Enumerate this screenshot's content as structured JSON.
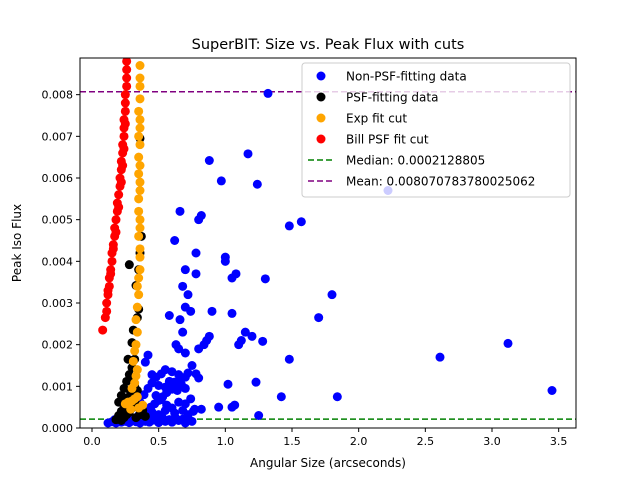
{
  "chart_data": {
    "type": "scatter",
    "title": "SuperBIT: Size vs. Peak Flux with cuts",
    "xlabel": "Angular Size (arcseconds)",
    "ylabel": "Peak Iso Flux",
    "xlim": [
      -0.09,
      3.63
    ],
    "ylim": [
      0,
      0.00888
    ],
    "x_ticks": [
      0.0,
      0.5,
      1.0,
      1.5,
      2.0,
      2.5,
      3.0,
      3.5
    ],
    "x_tick_labels": [
      "0.0",
      "0.5",
      "1.0",
      "1.5",
      "2.0",
      "2.5",
      "3.0",
      "3.5"
    ],
    "y_ticks": [
      0,
      0.001,
      0.002,
      0.003,
      0.004,
      0.005,
      0.006,
      0.007,
      0.008
    ],
    "y_tick_labels": [
      "0.000",
      "0.001",
      "0.002",
      "0.003",
      "0.004",
      "0.005",
      "0.006",
      "0.007",
      "0.008"
    ],
    "grid": false,
    "legend_position": "top-right",
    "series": [
      {
        "name": "Non-PSF-fitting data",
        "color": "#0000ff",
        "points": [
          [
            0.12,
            0.00012
          ],
          [
            0.15,
            0.00015
          ],
          [
            0.18,
            0.00012
          ],
          [
            0.2,
            0.00018
          ],
          [
            0.22,
            0.00014
          ],
          [
            0.25,
            0.00016
          ],
          [
            0.28,
            0.00013
          ],
          [
            0.3,
            0.00018
          ],
          [
            0.33,
            0.00015
          ],
          [
            0.36,
            0.00012
          ],
          [
            0.4,
            0.00016
          ],
          [
            0.43,
            0.00014
          ],
          [
            0.46,
            0.00019
          ],
          [
            0.5,
            0.00013
          ],
          [
            0.55,
            0.00016
          ],
          [
            0.6,
            0.00014
          ],
          [
            0.65,
            0.00018
          ],
          [
            0.7,
            0.00012
          ],
          [
            0.75,
            0.00016
          ],
          [
            0.17,
            0.0002
          ],
          [
            0.23,
            0.00022
          ],
          [
            0.27,
            0.00021
          ],
          [
            0.32,
            0.00023
          ],
          [
            0.38,
            0.0002
          ],
          [
            0.42,
            0.00025
          ],
          [
            0.48,
            0.00022
          ],
          [
            0.53,
            0.00024
          ],
          [
            0.58,
            0.0002
          ],
          [
            0.63,
            0.00023
          ],
          [
            0.68,
            0.00021
          ],
          [
            0.72,
            0.00024
          ],
          [
            0.35,
            0.0003
          ],
          [
            0.38,
            0.00036
          ],
          [
            0.41,
            0.00042
          ],
          [
            0.44,
            0.0005
          ],
          [
            0.47,
            0.00058
          ],
          [
            0.5,
            0.00066
          ],
          [
            0.53,
            0.00075
          ],
          [
            0.56,
            0.00085
          ],
          [
            0.6,
            0.00093
          ],
          [
            0.63,
            0.00102
          ],
          [
            0.66,
            0.00112
          ],
          [
            0.7,
            0.00122
          ],
          [
            0.72,
            0.00132
          ],
          [
            0.36,
            0.00062
          ],
          [
            0.39,
            0.0008
          ],
          [
            0.42,
            0.00095
          ],
          [
            0.45,
            0.00108
          ],
          [
            0.48,
            0.00122
          ],
          [
            0.52,
            0.0013
          ],
          [
            0.55,
            0.0014
          ],
          [
            0.4,
            0.00158
          ],
          [
            0.42,
            0.00175
          ],
          [
            0.45,
            0.00128
          ],
          [
            0.5,
            0.00102
          ],
          [
            0.55,
            0.00098
          ],
          [
            0.58,
            0.00112
          ],
          [
            0.62,
            0.0011
          ],
          [
            0.64,
            0.0009
          ],
          [
            0.67,
            0.00105
          ],
          [
            0.7,
            0.00095
          ],
          [
            0.65,
            0.00128
          ],
          [
            0.6,
            0.00135
          ],
          [
            0.48,
            0.00078
          ],
          [
            0.52,
            0.00068
          ],
          [
            0.56,
            0.00055
          ],
          [
            0.6,
            0.00048
          ],
          [
            0.65,
            0.00062
          ],
          [
            0.7,
            0.00058
          ],
          [
            0.74,
            0.0007
          ],
          [
            0.77,
            0.00045
          ],
          [
            0.45,
            0.00038
          ],
          [
            0.5,
            0.00032
          ],
          [
            0.55,
            0.00042
          ],
          [
            0.62,
            0.00036
          ],
          [
            0.68,
            0.00042
          ],
          [
            0.72,
            0.00032
          ],
          [
            0.76,
            0.0004
          ],
          [
            0.58,
            0.0027
          ],
          [
            0.63,
            0.002
          ],
          [
            0.65,
            0.0019
          ],
          [
            0.68,
            0.0023
          ],
          [
            0.7,
            0.0029
          ],
          [
            0.72,
            0.0032
          ],
          [
            0.68,
            0.0034
          ],
          [
            0.66,
            0.0026
          ],
          [
            0.7,
            0.0018
          ],
          [
            0.74,
            0.0028
          ],
          [
            0.62,
            0.0045
          ],
          [
            0.66,
            0.0052
          ],
          [
            0.7,
            0.0038
          ],
          [
            0.78,
            0.0042
          ],
          [
            0.8,
            0.005
          ],
          [
            0.82,
            0.0051
          ],
          [
            0.78,
            0.0037
          ],
          [
            0.8,
            0.0019
          ],
          [
            0.84,
            0.002
          ],
          [
            0.86,
            0.0021
          ],
          [
            0.88,
            0.0022
          ],
          [
            0.9,
            0.0028
          ],
          [
            0.75,
            0.0015
          ],
          [
            0.78,
            0.0013
          ],
          [
            0.8,
            0.0012
          ],
          [
            0.82,
            0.00045
          ],
          [
            0.95,
            0.0005
          ],
          [
            1.02,
            0.00105
          ],
          [
            1.05,
            0.0005
          ],
          [
            1.07,
            0.00055
          ],
          [
            1.0,
            0.0041
          ],
          [
            1.0,
            0.004
          ],
          [
            1.05,
            0.0036
          ],
          [
            1.08,
            0.0037
          ],
          [
            1.05,
            0.00275
          ],
          [
            1.1,
            0.002
          ],
          [
            1.12,
            0.0021
          ],
          [
            1.15,
            0.0023
          ],
          [
            1.2,
            0.0022
          ],
          [
            1.23,
            0.0011
          ],
          [
            1.28,
            0.00208
          ],
          [
            1.3,
            0.00358
          ],
          [
            0.88,
            0.00642
          ],
          [
            0.97,
            0.00593
          ],
          [
            1.17,
            0.00658
          ],
          [
            1.24,
            0.00585
          ],
          [
            1.32,
            0.00803
          ],
          [
            1.48,
            0.00485
          ],
          [
            1.57,
            0.00495
          ],
          [
            1.25,
            0.0003
          ],
          [
            1.42,
            0.00075
          ],
          [
            1.48,
            0.00165
          ],
          [
            1.7,
            0.00265
          ],
          [
            1.8,
            0.0032
          ],
          [
            1.84,
            0.00075
          ],
          [
            2.22,
            0.0057
          ],
          [
            2.61,
            0.0017
          ],
          [
            3.12,
            0.00203
          ],
          [
            3.45,
            0.0009
          ]
        ]
      },
      {
        "name": "PSF-fitting data",
        "color": "#000000",
        "points": [
          [
            0.18,
            0.0002
          ],
          [
            0.2,
            0.0003
          ],
          [
            0.22,
            0.0004
          ],
          [
            0.24,
            0.00048
          ],
          [
            0.26,
            0.00055
          ],
          [
            0.28,
            0.00062
          ],
          [
            0.3,
            0.0007
          ],
          [
            0.32,
            0.00078
          ],
          [
            0.34,
            0.0009
          ],
          [
            0.2,
            0.00062
          ],
          [
            0.22,
            0.00078
          ],
          [
            0.24,
            0.00095
          ],
          [
            0.26,
            0.00112
          ],
          [
            0.28,
            0.00128
          ],
          [
            0.3,
            0.00145
          ],
          [
            0.32,
            0.00165
          ],
          [
            0.27,
            0.00165
          ],
          [
            0.3,
            0.00205
          ],
          [
            0.31,
            0.00235
          ],
          [
            0.34,
            0.00265
          ],
          [
            0.35,
            0.00285
          ],
          [
            0.33,
            0.00342
          ],
          [
            0.35,
            0.0038
          ],
          [
            0.36,
            0.0042
          ],
          [
            0.28,
            0.00392
          ],
          [
            0.37,
            0.0046
          ],
          [
            0.36,
            0.00695
          ],
          [
            0.24,
            0.00025
          ],
          [
            0.26,
            0.00032
          ],
          [
            0.28,
            0.00038
          ],
          [
            0.33,
            0.00025
          ],
          [
            0.36,
            0.00032
          ],
          [
            0.3,
            0.00048
          ],
          [
            0.34,
            0.00055
          ],
          [
            0.25,
            0.00072
          ],
          [
            0.29,
            0.00085
          ],
          [
            0.32,
            0.001
          ],
          [
            0.36,
            0.00035
          ],
          [
            0.38,
            0.00042
          ],
          [
            0.4,
            0.00028
          ],
          [
            0.22,
            0.00018
          ],
          [
            0.26,
            0.00045
          ],
          [
            0.31,
            0.00118
          ]
        ]
      },
      {
        "name": "Exp fit cut",
        "color": "#ffa500",
        "points": [
          [
            0.25,
            0.00058
          ],
          [
            0.27,
            0.00062
          ],
          [
            0.3,
            0.00065
          ],
          [
            0.32,
            0.0007
          ],
          [
            0.34,
            0.00075
          ],
          [
            0.3,
            0.00095
          ],
          [
            0.32,
            0.00108
          ],
          [
            0.33,
            0.00125
          ],
          [
            0.34,
            0.0014
          ],
          [
            0.31,
            0.0016
          ],
          [
            0.32,
            0.00185
          ],
          [
            0.33,
            0.002
          ],
          [
            0.34,
            0.0023
          ],
          [
            0.33,
            0.0026
          ],
          [
            0.34,
            0.0029
          ],
          [
            0.35,
            0.0032
          ],
          [
            0.34,
            0.0034
          ],
          [
            0.35,
            0.0036
          ],
          [
            0.36,
            0.0038
          ],
          [
            0.36,
            0.0041
          ],
          [
            0.36,
            0.0043
          ],
          [
            0.35,
            0.0046
          ],
          [
            0.36,
            0.0048
          ],
          [
            0.36,
            0.005
          ],
          [
            0.35,
            0.0052
          ],
          [
            0.35,
            0.0055
          ],
          [
            0.36,
            0.0057
          ],
          [
            0.36,
            0.0059
          ],
          [
            0.35,
            0.0061
          ],
          [
            0.36,
            0.0063
          ],
          [
            0.35,
            0.0065
          ],
          [
            0.36,
            0.0068
          ],
          [
            0.35,
            0.007
          ],
          [
            0.36,
            0.0072
          ],
          [
            0.36,
            0.0074
          ],
          [
            0.35,
            0.0076
          ],
          [
            0.36,
            0.0079
          ],
          [
            0.36,
            0.0082
          ],
          [
            0.36,
            0.0084
          ],
          [
            0.36,
            0.0087
          ],
          [
            0.29,
            0.00045
          ],
          [
            0.35,
            0.00048
          ],
          [
            0.38,
            0.00055
          ]
        ]
      },
      {
        "name": "Bill PSF fit cut",
        "color": "#ff0000",
        "points": [
          [
            0.08,
            0.00235
          ],
          [
            0.1,
            0.00265
          ],
          [
            0.11,
            0.0028
          ],
          [
            0.11,
            0.003
          ],
          [
            0.12,
            0.0032
          ],
          [
            0.13,
            0.0034
          ],
          [
            0.13,
            0.0036
          ],
          [
            0.14,
            0.0038
          ],
          [
            0.15,
            0.004
          ],
          [
            0.15,
            0.0042
          ],
          [
            0.16,
            0.0044
          ],
          [
            0.17,
            0.0046
          ],
          [
            0.17,
            0.0048
          ],
          [
            0.18,
            0.005
          ],
          [
            0.19,
            0.0052
          ],
          [
            0.19,
            0.0054
          ],
          [
            0.2,
            0.0056
          ],
          [
            0.21,
            0.0058
          ],
          [
            0.21,
            0.006
          ],
          [
            0.22,
            0.0062
          ],
          [
            0.22,
            0.0064
          ],
          [
            0.23,
            0.0066
          ],
          [
            0.23,
            0.0068
          ],
          [
            0.24,
            0.007
          ],
          [
            0.24,
            0.0072
          ],
          [
            0.24,
            0.0074
          ],
          [
            0.25,
            0.0076
          ],
          [
            0.25,
            0.0078
          ],
          [
            0.25,
            0.008
          ],
          [
            0.26,
            0.0082
          ],
          [
            0.26,
            0.0084
          ],
          [
            0.26,
            0.0086
          ],
          [
            0.26,
            0.0088
          ],
          [
            0.12,
            0.0033
          ],
          [
            0.14,
            0.0037
          ],
          [
            0.16,
            0.0043
          ],
          [
            0.18,
            0.0047
          ],
          [
            0.2,
            0.0053
          ],
          [
            0.22,
            0.0059
          ],
          [
            0.23,
            0.0063
          ],
          [
            0.24,
            0.0067
          ],
          [
            0.25,
            0.0073
          ]
        ]
      }
    ],
    "reference_lines": [
      {
        "name": "Median: 0.0002128805",
        "value": 0.0002128805,
        "color": "#008000",
        "style": "dashed"
      },
      {
        "name": "Mean: 0.008070783780025062",
        "value": 0.008070783780025062,
        "color": "#800080",
        "style": "dashed"
      }
    ]
  }
}
